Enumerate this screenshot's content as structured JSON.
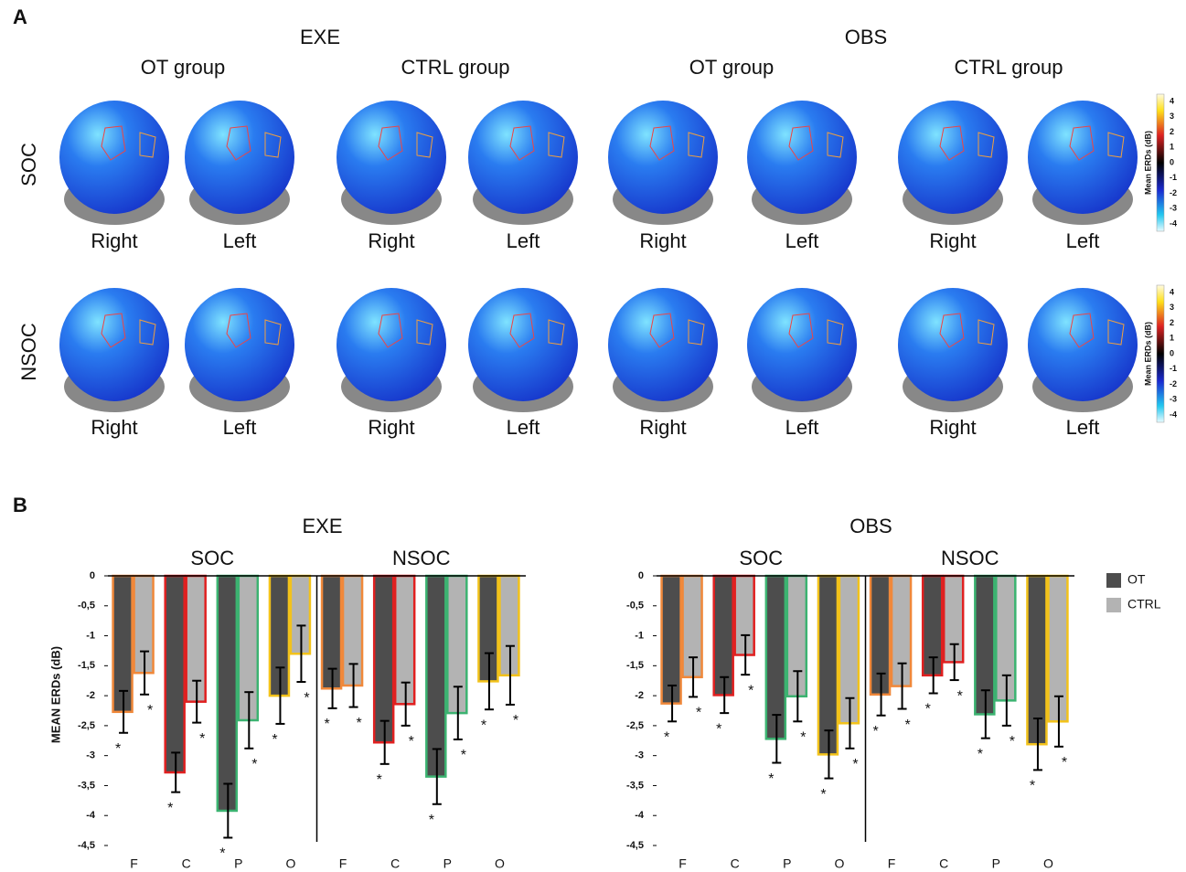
{
  "panel_a": {
    "label": "A",
    "conditions": [
      {
        "title": "EXE",
        "groups": [
          "OT group",
          "CTRL group"
        ]
      },
      {
        "title": "OBS",
        "groups": [
          "OT group",
          "CTRL group"
        ]
      }
    ],
    "rows": [
      "SOC",
      "NSOC"
    ],
    "views": [
      "Right",
      "Left"
    ],
    "colorbars": [
      {
        "title": "Mean ERDs (dB)",
        "ticks": [
          4,
          3,
          2,
          1,
          0,
          -1,
          -2,
          -3,
          -4
        ]
      },
      {
        "title": "Mean ERDs (dB)",
        "ticks": [
          4,
          3,
          2,
          1,
          0,
          -1,
          -2,
          -3,
          -4
        ]
      }
    ]
  },
  "panel_b": {
    "label": "B"
  },
  "chart_data": [
    {
      "type": "bar",
      "title": "EXE",
      "ylabel": "MEAN ERDs (dB)",
      "groups": [
        "SOC",
        "NSOC"
      ],
      "categories": [
        "F",
        "C",
        "P",
        "O",
        "F",
        "C",
        "P",
        "O"
      ],
      "edge_colors": [
        "#f0883a",
        "#e02020",
        "#3cb371",
        "#f2c21b",
        "#f0883a",
        "#e02020",
        "#3cb371",
        "#f2c21b"
      ],
      "series": [
        {
          "name": "OT",
          "color": "#4d4d4d",
          "values": [
            -2.27,
            -3.28,
            -3.92,
            -2.0,
            -1.88,
            -2.78,
            -3.35,
            -1.76
          ],
          "errors": [
            0.35,
            0.33,
            0.45,
            0.47,
            0.33,
            0.36,
            0.46,
            0.47
          ],
          "significance": [
            "*",
            "*",
            "*",
            "*",
            "*",
            "*",
            "*",
            "*"
          ]
        },
        {
          "name": "CTRL",
          "color": "#b3b3b3",
          "values": [
            -1.62,
            -2.1,
            -2.41,
            -1.3,
            -1.83,
            -2.14,
            -2.29,
            -1.66
          ],
          "errors": [
            0.36,
            0.35,
            0.47,
            0.47,
            0.36,
            0.36,
            0.44,
            0.49
          ],
          "significance": [
            "*",
            "*",
            "*",
            "*",
            "*",
            "*",
            "*",
            "*"
          ]
        }
      ],
      "ylim": [
        -4.5,
        0
      ],
      "yticks": [
        0,
        {
          "value": -0.5,
          "label": "-0,5"
        },
        -1,
        {
          "value": -1.5,
          "label": "-1,5"
        },
        -2,
        {
          "value": -2.5,
          "label": "-2,5"
        },
        -3,
        {
          "value": -3.5,
          "label": "-3,5"
        },
        -4,
        {
          "value": -4.5,
          "label": "-4,5"
        }
      ]
    },
    {
      "type": "bar",
      "title": "OBS",
      "groups": [
        "SOC",
        "NSOC"
      ],
      "categories": [
        "F",
        "C",
        "P",
        "O",
        "F",
        "C",
        "P",
        "O"
      ],
      "edge_colors": [
        "#f0883a",
        "#e02020",
        "#3cb371",
        "#f2c21b",
        "#f0883a",
        "#e02020",
        "#3cb371",
        "#f2c21b"
      ],
      "series": [
        {
          "name": "OT",
          "color": "#4d4d4d",
          "values": [
            -2.13,
            -1.99,
            -2.72,
            -2.98,
            -1.98,
            -1.66,
            -2.31,
            -2.81
          ],
          "errors": [
            0.3,
            0.3,
            0.4,
            0.4,
            0.35,
            0.3,
            0.4,
            0.43
          ],
          "significance": [
            "*",
            "*",
            "*",
            "*",
            "*",
            "*",
            "*",
            "*"
          ]
        },
        {
          "name": "CTRL",
          "color": "#b3b3b3",
          "values": [
            -1.69,
            -1.32,
            -2.01,
            -2.46,
            -1.84,
            -1.44,
            -2.08,
            -2.43
          ],
          "errors": [
            0.33,
            0.33,
            0.42,
            0.42,
            0.38,
            0.3,
            0.42,
            0.42
          ],
          "significance": [
            "*",
            "*",
            "*",
            "*",
            "*",
            "*",
            "*",
            "*"
          ]
        }
      ],
      "ylim": [
        -4.5,
        0
      ],
      "yticks": [
        0,
        {
          "value": -0.5,
          "label": "-0,5"
        },
        -1,
        {
          "value": -1.5,
          "label": "-1,5"
        },
        -2,
        {
          "value": -2.5,
          "label": "-2,5"
        },
        -3,
        {
          "value": -3.5,
          "label": "-3,5"
        },
        -4,
        {
          "value": -4.5,
          "label": "-4,5"
        }
      ],
      "legend": "right"
    }
  ]
}
